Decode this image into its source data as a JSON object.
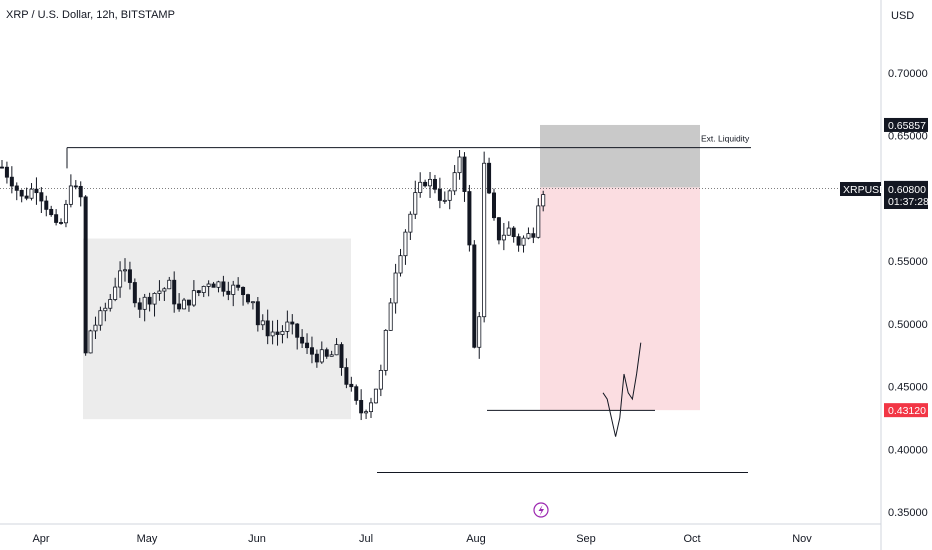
{
  "chart_data": {
    "type": "candlestick",
    "title": "XRP / U.S. Dollar, 12h, BITSTAMP",
    "currency": "USD",
    "symbol": "XRPUSD",
    "last_price": "0.60800",
    "countdown": "01:37:28",
    "y_ticks": [
      "0.70000",
      "0.65000",
      "0.60000",
      "0.55000",
      "0.50000",
      "0.45000",
      "0.40000",
      "0.35000"
    ],
    "y_tick_values": [
      0.7,
      0.65,
      0.6,
      0.55,
      0.5,
      0.45,
      0.4,
      0.35
    ],
    "x_ticks": [
      "Apr",
      "May",
      "Jun",
      "Jul",
      "Aug",
      "Sep",
      "Oct",
      "Nov"
    ],
    "price_badges": [
      {
        "label": "0.65857",
        "value": 0.65857,
        "style": "dark"
      },
      {
        "label": "0.60878",
        "value": 0.60878,
        "style": "gray"
      },
      {
        "label": "0.43120",
        "value": 0.4312,
        "style": "red"
      }
    ],
    "annotation": "Ext. Liquidity",
    "levels": {
      "ext_liquidity": 0.6405,
      "low_line": 0.431,
      "bottom_line": 0.3815
    },
    "range_box": {
      "top": 0.568,
      "bottom": 0.424
    },
    "position": {
      "target": 0.65857,
      "entry": 0.60878,
      "stop": 0.4312
    },
    "series_path": [
      [
        0,
        0.625
      ],
      [
        2,
        0.615
      ],
      [
        4,
        0.6
      ],
      [
        7,
        0.61
      ],
      [
        9,
        0.595
      ],
      [
        11,
        0.575
      ],
      [
        12,
        0.58
      ],
      [
        13,
        0.592
      ],
      [
        14,
        0.615
      ],
      [
        15,
        0.605
      ],
      [
        16,
        0.6
      ],
      [
        17,
        0.475
      ],
      [
        18,
        0.495
      ],
      [
        20,
        0.505
      ],
      [
        22,
        0.52
      ],
      [
        24,
        0.545
      ],
      [
        26,
        0.53
      ],
      [
        28,
        0.515
      ],
      [
        31,
        0.525
      ],
      [
        34,
        0.53
      ],
      [
        36,
        0.51
      ],
      [
        38,
        0.52
      ],
      [
        40,
        0.525
      ],
      [
        42,
        0.535
      ],
      [
        44,
        0.532
      ],
      [
        47,
        0.528
      ],
      [
        49,
        0.525
      ],
      [
        51,
        0.52
      ],
      [
        52,
        0.5
      ],
      [
        54,
        0.495
      ],
      [
        56,
        0.492
      ],
      [
        58,
        0.498
      ],
      [
        60,
        0.49
      ],
      [
        62,
        0.478
      ],
      [
        64,
        0.475
      ],
      [
        66,
        0.472
      ],
      [
        67,
        0.475
      ],
      [
        68,
        0.478
      ],
      [
        70,
        0.455
      ],
      [
        72,
        0.435
      ],
      [
        73,
        0.43
      ],
      [
        75,
        0.44
      ],
      [
        77,
        0.46
      ],
      [
        79,
        0.52
      ],
      [
        80,
        0.545
      ],
      [
        82,
        0.575
      ],
      [
        84,
        0.6
      ],
      [
        86,
        0.615
      ],
      [
        88,
        0.61
      ],
      [
        90,
        0.595
      ],
      [
        92,
        0.615
      ],
      [
        93,
        0.635
      ],
      [
        94,
        0.61
      ],
      [
        95,
        0.56
      ],
      [
        96,
        0.48
      ],
      [
        97,
        0.51
      ],
      [
        98,
        0.625
      ],
      [
        99,
        0.6
      ],
      [
        100,
        0.58
      ],
      [
        101,
        0.57
      ],
      [
        103,
        0.575
      ],
      [
        105,
        0.565
      ],
      [
        107,
        0.57
      ],
      [
        108,
        0.575
      ],
      [
        109,
        0.6
      ],
      [
        110,
        0.608
      ]
    ],
    "drawn_scribble": [
      [
        0,
        0.445
      ],
      [
        1,
        0.44
      ],
      [
        2,
        0.425
      ],
      [
        3,
        0.41
      ],
      [
        4,
        0.425
      ],
      [
        5,
        0.46
      ],
      [
        6,
        0.445
      ],
      [
        7,
        0.44
      ],
      [
        8,
        0.46
      ],
      [
        9,
        0.485
      ]
    ]
  }
}
